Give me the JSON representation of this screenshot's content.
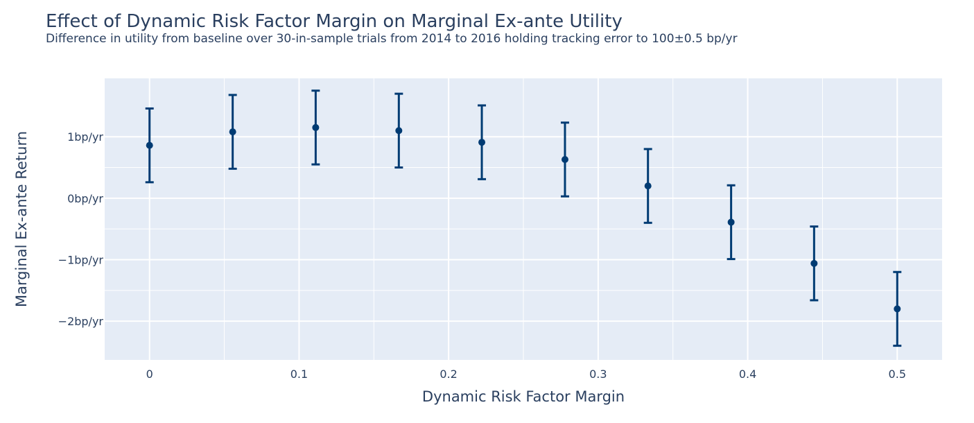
{
  "chart_data": {
    "type": "scatter",
    "title": "Effect of Dynamic Risk Factor Margin on Marginal Ex-ante Utility",
    "subtitle": "Difference in utility from baseline over 30-in-sample trials from 2014 to 2016 holding tracking error to 100±0.5 bp/yr",
    "xlabel": "Dynamic Risk Factor Margin",
    "ylabel": "Marginal Ex-ante Return",
    "xlim": [
      -0.03,
      0.53
    ],
    "ylim": [
      -2.63,
      1.95
    ],
    "x_ticks": [
      {
        "value": 0,
        "label": "0"
      },
      {
        "value": 0.1,
        "label": "0.1"
      },
      {
        "value": 0.2,
        "label": "0.2"
      },
      {
        "value": 0.3,
        "label": "0.3"
      },
      {
        "value": 0.4,
        "label": "0.4"
      },
      {
        "value": 0.5,
        "label": "0.5"
      }
    ],
    "y_ticks": [
      {
        "value": 1,
        "label": "1bp/yr"
      },
      {
        "value": 0,
        "label": "0bp/yr"
      },
      {
        "value": -1,
        "label": "−1bp/yr"
      },
      {
        "value": -2,
        "label": "−2bp/yr"
      }
    ],
    "grid": true,
    "legend": "none",
    "colors": {
      "plot_background": "#e5ecf6",
      "grid": "#ffffff",
      "marker": "#003b73",
      "text": "#2a3f5f"
    },
    "series": [
      {
        "x": [
          0,
          0.0556,
          0.1111,
          0.1667,
          0.2222,
          0.2778,
          0.3333,
          0.3889,
          0.4444,
          0.5
        ],
        "y": [
          0.86,
          1.08,
          1.15,
          1.1,
          0.91,
          0.63,
          0.2,
          -0.39,
          -1.06,
          -1.8
        ],
        "error_low": [
          0.26,
          0.48,
          0.55,
          0.5,
          0.31,
          0.03,
          -0.4,
          -0.99,
          -1.66,
          -2.4
        ],
        "error_high": [
          1.46,
          1.68,
          1.75,
          1.7,
          1.51,
          1.23,
          0.8,
          0.21,
          -0.46,
          -1.2
        ]
      }
    ]
  }
}
